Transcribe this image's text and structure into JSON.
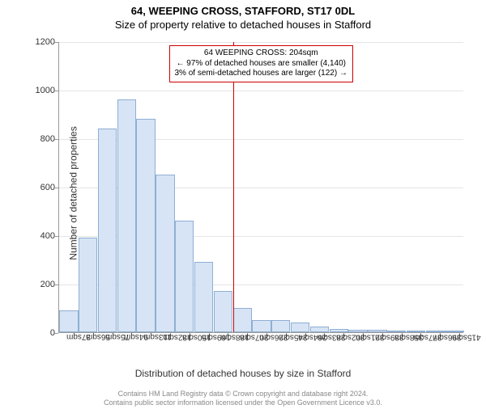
{
  "titles": {
    "line1": "64, WEEPING CROSS, STAFFORD, ST17 0DL",
    "line2": "Size of property relative to detached houses in Stafford"
  },
  "chart": {
    "type": "histogram",
    "bar_fill": "#d6e4f5",
    "bar_border": "#8faed3",
    "grid_color": "#e5e5e5",
    "axis_color": "#999999",
    "ymax": 1200,
    "ytick_step": 200,
    "categories": [
      "37sqm",
      "56sqm",
      "75sqm",
      "94sqm",
      "113sqm",
      "132sqm",
      "150sqm",
      "169sqm",
      "188sqm",
      "207sqm",
      "226sqm",
      "245sqm",
      "264sqm",
      "283sqm",
      "302sqm",
      "321sqm",
      "339sqm",
      "358sqm",
      "377sqm",
      "396sqm",
      "415sqm"
    ],
    "values": [
      90,
      390,
      840,
      960,
      880,
      650,
      460,
      290,
      170,
      100,
      50,
      50,
      40,
      25,
      15,
      10,
      10,
      8,
      8,
      8,
      8
    ],
    "marker_line": {
      "x_category_index": 9,
      "color": "#cc0000"
    }
  },
  "annotation": {
    "line1": "64 WEEPING CROSS: 204sqm",
    "line2": "← 97% of detached houses are smaller (4,140)",
    "line3": "3% of semi-detached houses are larger (122) →",
    "border_color": "#cc0000"
  },
  "axis_labels": {
    "y": "Number of detached properties",
    "x": "Distribution of detached houses by size in Stafford"
  },
  "footer": {
    "line1": "Contains HM Land Registry data © Crown copyright and database right 2024.",
    "line2": "Contains public sector information licensed under the Open Government Licence v3.0."
  }
}
